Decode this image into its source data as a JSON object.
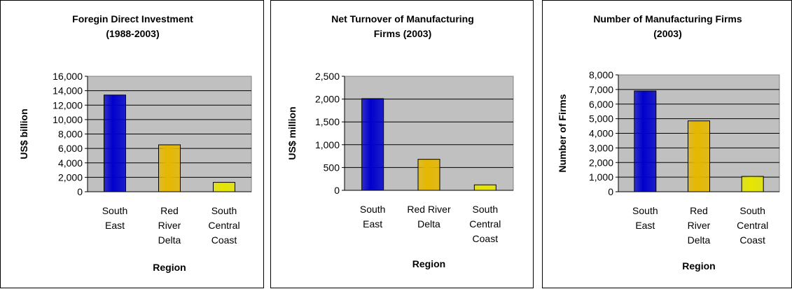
{
  "chart_data": [
    {
      "type": "bar",
      "title": [
        "Foregin Direct Investment",
        "(1988-2003)"
      ],
      "ylabel": "US$ billion",
      "xlabel": "Region",
      "categories": [
        [
          "South",
          "East"
        ],
        [
          "Red",
          "River",
          "Delta"
        ],
        [
          "South",
          "Central",
          "Coast"
        ]
      ],
      "values": [
        13400,
        6500,
        1300
      ],
      "ylim": [
        0,
        16000
      ],
      "yticks": [
        "0",
        "2,000",
        "4,000",
        "6,000",
        "8,000",
        "10,000",
        "12,000",
        "14,000",
        "16,000"
      ],
      "bar_colors": [
        "#0000cc",
        "#e6b800",
        "#e6e600"
      ],
      "plot_background": "#c0c0c0",
      "grid": true
    },
    {
      "type": "bar",
      "title": [
        "Net Turnover of Manufacturing",
        "Firms (2003)"
      ],
      "ylabel": "US$ million",
      "xlabel": "Region",
      "categories": [
        [
          "South",
          "East"
        ],
        [
          "Red River",
          "Delta"
        ],
        [
          "South",
          "Central",
          "Coast"
        ]
      ],
      "values": [
        2010,
        680,
        120
      ],
      "ylim": [
        0,
        2500
      ],
      "yticks": [
        "0",
        "500",
        "1,000",
        "1,500",
        "2,000",
        "2,500"
      ],
      "bar_colors": [
        "#0000cc",
        "#e6b800",
        "#e6e600"
      ],
      "plot_background": "#c0c0c0",
      "grid": true
    },
    {
      "type": "bar",
      "title": [
        "Number of Manufacturing Firms",
        "(2003)"
      ],
      "ylabel": "Number of Firms",
      "xlabel": "Region",
      "categories": [
        [
          "South",
          "East"
        ],
        [
          "Red",
          "River",
          "Delta"
        ],
        [
          "South",
          "Central",
          "Coast"
        ]
      ],
      "values": [
        6900,
        4850,
        1050
      ],
      "ylim": [
        0,
        8000
      ],
      "yticks": [
        "0",
        "1,000",
        "2,000",
        "3,000",
        "4,000",
        "5,000",
        "6,000",
        "7,000",
        "8,000"
      ],
      "bar_colors": [
        "#0000cc",
        "#e6b800",
        "#e6e600"
      ],
      "plot_background": "#c0c0c0",
      "grid": true
    }
  ]
}
